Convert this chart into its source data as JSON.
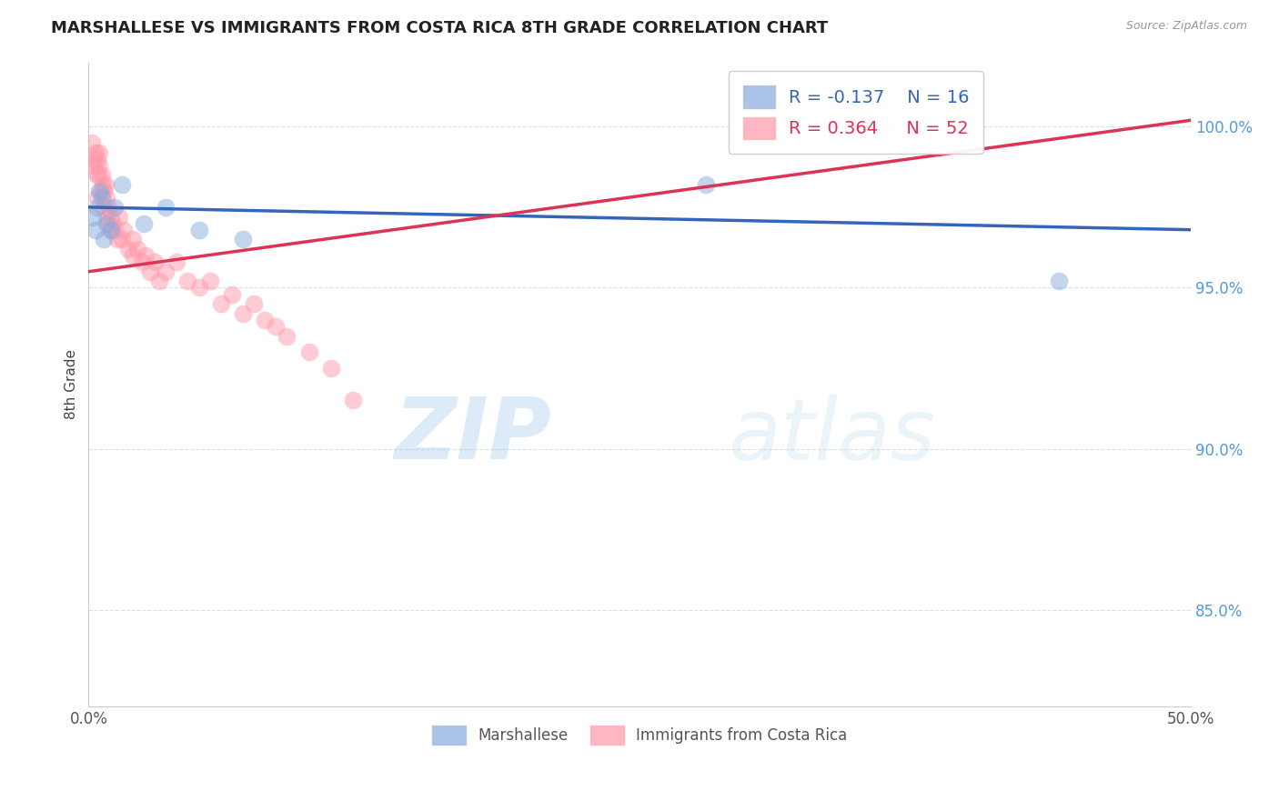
{
  "title": "MARSHALLESE VS IMMIGRANTS FROM COSTA RICA 8TH GRADE CORRELATION CHART",
  "source": "Source: ZipAtlas.com",
  "ylabel": "8th Grade",
  "xlim": [
    0.0,
    50.0
  ],
  "ylim": [
    82.0,
    102.0
  ],
  "yticks": [
    85.0,
    90.0,
    95.0,
    100.0
  ],
  "ytick_labels": [
    "85.0%",
    "90.0%",
    "95.0%",
    "100.0%"
  ],
  "xticks": [
    0.0,
    10.0,
    20.0,
    30.0,
    40.0,
    50.0
  ],
  "xtick_labels": [
    "0.0%",
    "",
    "",
    "",
    "",
    "50.0%"
  ],
  "blue_R": -0.137,
  "blue_N": 16,
  "pink_R": 0.364,
  "pink_N": 52,
  "blue_color": "#88AADD",
  "pink_color": "#FF99AA",
  "blue_line_color": "#3366BB",
  "pink_line_color": "#DD3355",
  "legend_label_blue": "Marshallese",
  "legend_label_pink": "Immigrants from Costa Rica",
  "watermark_zip": "ZIP",
  "watermark_atlas": "atlas",
  "watermark_color_zip": "#AACCEE",
  "watermark_color_atlas": "#AACCEE",
  "blue_x": [
    0.2,
    0.3,
    0.4,
    0.5,
    0.6,
    0.7,
    0.8,
    1.0,
    1.2,
    1.5,
    2.5,
    3.5,
    5.0,
    7.0,
    28.0,
    44.0
  ],
  "blue_y": [
    97.2,
    96.8,
    97.5,
    98.0,
    97.8,
    96.5,
    97.0,
    96.8,
    97.5,
    98.2,
    97.0,
    97.5,
    96.8,
    96.5,
    98.2,
    95.2
  ],
  "pink_x": [
    0.15,
    0.2,
    0.25,
    0.3,
    0.35,
    0.4,
    0.4,
    0.45,
    0.5,
    0.5,
    0.55,
    0.6,
    0.65,
    0.7,
    0.7,
    0.75,
    0.8,
    0.8,
    0.9,
    0.9,
    1.0,
    1.0,
    1.1,
    1.2,
    1.3,
    1.4,
    1.5,
    1.6,
    1.8,
    2.0,
    2.0,
    2.2,
    2.4,
    2.6,
    2.8,
    3.0,
    3.2,
    3.5,
    4.0,
    4.5,
    5.0,
    5.5,
    6.0,
    6.5,
    7.0,
    7.5,
    8.0,
    8.5,
    9.0,
    10.0,
    11.0,
    12.0
  ],
  "pink_y": [
    99.5,
    99.0,
    98.8,
    99.2,
    98.5,
    99.0,
    97.8,
    98.5,
    98.8,
    99.2,
    98.0,
    98.5,
    98.2,
    98.0,
    97.5,
    98.2,
    97.8,
    97.2,
    97.5,
    97.0,
    97.2,
    96.8,
    97.0,
    96.8,
    96.5,
    97.2,
    96.5,
    96.8,
    96.2,
    96.5,
    96.0,
    96.2,
    95.8,
    96.0,
    95.5,
    95.8,
    95.2,
    95.5,
    95.8,
    95.2,
    95.0,
    95.2,
    94.5,
    94.8,
    94.2,
    94.5,
    94.0,
    93.8,
    93.5,
    93.0,
    92.5,
    91.5
  ],
  "pink_line_x0": 0.0,
  "pink_line_y0": 95.5,
  "pink_line_x1": 50.0,
  "pink_line_y1": 100.2,
  "blue_line_x0": 0.0,
  "blue_line_y0": 97.5,
  "blue_line_x1": 50.0,
  "blue_line_y1": 96.8
}
